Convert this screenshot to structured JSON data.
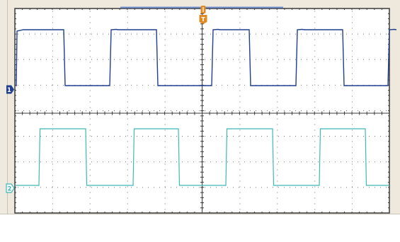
{
  "colors": {
    "frame": "#eee9dc",
    "panel": "#ffffff",
    "screen": "#ffffff",
    "border": "#3a3a3a",
    "grid_dot": "#6f6f6f",
    "axis": "#3a3a3a",
    "ch1": "#1f3f8f",
    "ch2": "#3fb8b8",
    "trigger": "#e08a24",
    "timebase_bar": "#6f8fd0"
  },
  "channels": [
    {
      "id": "ch1",
      "marker_label": "1",
      "color_key": "ch1"
    },
    {
      "id": "ch2",
      "marker_label": "2",
      "color_key": "ch2"
    }
  ],
  "trigger": {
    "marker_label": "T",
    "icon": "trigger-marker-icon"
  },
  "icons": [
    "ch1-ground-marker-icon",
    "ch2-ground-marker-icon",
    "trigger-marker-icon",
    "trigger-position-icon"
  ]
}
